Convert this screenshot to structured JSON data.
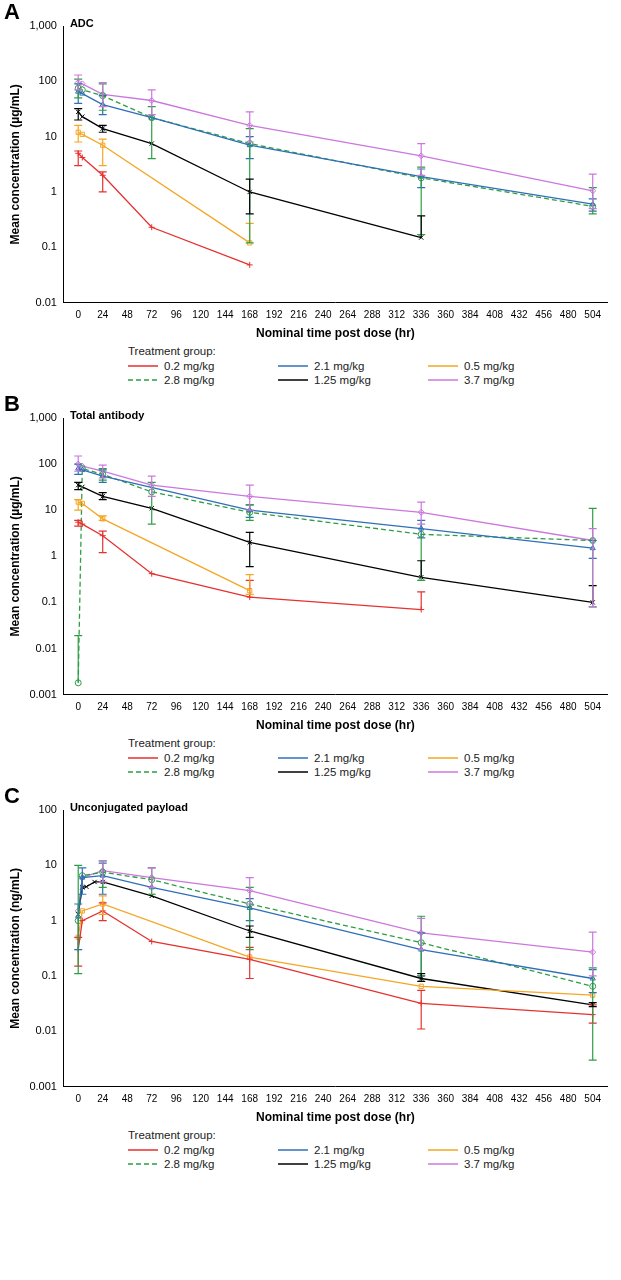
{
  "chart_data": [
    {
      "panel": "A",
      "type": "line",
      "title": "ADC",
      "x_label": "Nominal time post dose (hr)",
      "y_label": "Mean concentration (µg/mL)",
      "log": "y",
      "grid": false,
      "legend": "bottom",
      "legend_title": "Treatment group:",
      "xlim": [
        -14,
        518
      ],
      "xticks": [
        0,
        24,
        48,
        72,
        96,
        120,
        144,
        168,
        192,
        216,
        240,
        264,
        288,
        312,
        336,
        360,
        384,
        408,
        432,
        456,
        480,
        504
      ],
      "ylim": [
        0.01,
        1000
      ],
      "yticks": [
        0.01,
        0.1,
        1,
        10,
        100,
        {
          "value": 1000,
          "label": "1,000"
        }
      ],
      "series": [
        {
          "name": "0.2 mg/kg",
          "color": "#e5312f",
          "marker": "plus",
          "line_style": "solid",
          "x": [
            0,
            4,
            24,
            72,
            168
          ],
          "values": [
            5,
            4.2,
            2,
            0.23,
            0.048
          ],
          "error_low": [
            3,
            null,
            1,
            null,
            null
          ],
          "error_high": [
            5.5,
            null,
            2.3,
            null,
            null
          ]
        },
        {
          "name": "2.1 mg/kg",
          "color": "#2f6fb7",
          "marker": "triangle",
          "line_style": "solid",
          "x": [
            0,
            4,
            24,
            72,
            168,
            336,
            504
          ],
          "values": [
            65,
            60,
            38,
            22,
            7,
            1.9,
            0.6
          ],
          "error_low": [
            40,
            null,
            25,
            null,
            4,
            1.2,
            0.45
          ],
          "error_high": [
            90,
            null,
            55,
            null,
            10,
            2.6,
            0.75
          ]
        },
        {
          "name": "0.5 mg/kg",
          "color": "#f5a623",
          "marker": "square",
          "line_style": "solid",
          "x": [
            0,
            4,
            24,
            168
          ],
          "values": [
            12,
            11,
            7,
            0.12
          ],
          "error_low": [
            8,
            null,
            3,
            null
          ],
          "error_high": [
            16,
            null,
            9,
            0.27
          ]
        },
        {
          "name": "2.8 mg/kg",
          "color": "#2e9e44",
          "marker": "circle",
          "line_style": "dashed",
          "x": [
            0,
            4,
            24,
            72,
            168,
            336,
            504
          ],
          "values": [
            75,
            70,
            55,
            22,
            7.5,
            1.8,
            0.55
          ],
          "error_low": [
            50,
            null,
            30,
            4,
            0.12,
            0.17,
            0.4
          ],
          "error_high": [
            110,
            null,
            90,
            35,
            14,
            2.8,
            1.2
          ]
        },
        {
          "name": "1.25 mg/kg",
          "color": "#000000",
          "marker": "x",
          "line_style": "solid",
          "x": [
            0,
            4,
            24,
            72,
            168,
            336
          ],
          "values": [
            28,
            23,
            14,
            7.5,
            1,
            0.15
          ],
          "error_low": [
            20,
            null,
            12,
            null,
            0.4,
            null
          ],
          "error_high": [
            32,
            null,
            16,
            null,
            1.7,
            0.37
          ]
        },
        {
          "name": "3.7 mg/kg",
          "color": "#cc77dd",
          "marker": "diamond",
          "line_style": "solid",
          "x": [
            0,
            4,
            24,
            72,
            168,
            336,
            504
          ],
          "values": [
            95,
            90,
            58,
            45,
            16,
            4.5,
            1.05
          ],
          "error_low": [
            70,
            null,
            35,
            25,
            8,
            2,
            0.5
          ],
          "error_high": [
            130,
            null,
            95,
            70,
            28,
            7.5,
            2.1
          ]
        }
      ]
    },
    {
      "panel": "B",
      "type": "line",
      "title": "Total antibody",
      "x_label": "Nominal time post dose (hr)",
      "y_label": "Mean concentration (µg/mL)",
      "log": "y",
      "grid": false,
      "legend": "bottom",
      "legend_title": "Treatment group:",
      "xlim": [
        -14,
        518
      ],
      "xticks": [
        0,
        24,
        48,
        72,
        96,
        120,
        144,
        168,
        192,
        216,
        240,
        264,
        288,
        312,
        336,
        360,
        384,
        408,
        432,
        456,
        480,
        504
      ],
      "ylim": [
        0.001,
        1000
      ],
      "yticks": [
        0.001,
        0.01,
        0.1,
        1,
        10,
        100,
        {
          "value": 1000,
          "label": "1,000"
        }
      ],
      "series": [
        {
          "name": "0.2 mg/kg",
          "color": "#e5312f",
          "marker": "plus",
          "line_style": "solid",
          "x": [
            0,
            4,
            24,
            72,
            168,
            336
          ],
          "values": [
            5.5,
            5,
            2.8,
            0.42,
            0.13,
            0.07
          ],
          "error_low": [
            4.5,
            null,
            1.2,
            null,
            null,
            null
          ],
          "error_high": [
            6,
            null,
            3.5,
            null,
            0.3,
            0.17
          ]
        },
        {
          "name": "2.1 mg/kg",
          "color": "#2f6fb7",
          "marker": "triangle",
          "line_style": "solid",
          "x": [
            0,
            4,
            24,
            168,
            336,
            504
          ],
          "values": [
            80,
            75,
            55,
            10,
            4,
            1.5
          ],
          "error_low": [
            60,
            null,
            40,
            7,
            2.5,
            0.9
          ],
          "error_high": [
            100,
            null,
            75,
            13,
            6,
            2.2
          ]
        },
        {
          "name": "0.5 mg/kg",
          "color": "#f5a623",
          "marker": "square",
          "line_style": "solid",
          "x": [
            0,
            4,
            24,
            168
          ],
          "values": [
            15,
            14,
            6.5,
            0.18
          ],
          "error_low": [
            10,
            null,
            6,
            0.15
          ],
          "error_high": [
            17,
            null,
            7.5,
            0.4
          ]
        },
        {
          "name": "2.8 mg/kg",
          "color": "#2e9e44",
          "marker": "circle",
          "line_style": "dashed",
          "x": [
            0,
            4,
            24,
            72,
            168,
            336,
            504
          ],
          "values": [
            0.0018,
            80,
            60,
            25,
            9,
            3,
            2.2
          ],
          "error_low": [
            null,
            null,
            45,
            5,
            6,
            0.3,
            0.08
          ],
          "error_high": [
            0.019,
            null,
            80,
            40,
            13,
            null,
            11
          ]
        },
        {
          "name": "1.25 mg/kg",
          "color": "#000000",
          "marker": "x",
          "line_style": "solid",
          "x": [
            0,
            4,
            24,
            72,
            168,
            336,
            504
          ],
          "values": [
            35,
            32,
            20,
            11,
            2,
            0.35,
            0.1
          ],
          "error_low": [
            28,
            null,
            17,
            null,
            0.6,
            null,
            null
          ],
          "error_high": [
            40,
            null,
            24,
            null,
            3.3,
            0.8,
            0.23
          ]
        },
        {
          "name": "3.7 mg/kg",
          "color": "#cc77dd",
          "marker": "diamond",
          "line_style": "solid",
          "x": [
            0,
            4,
            24,
            72,
            168,
            336,
            504
          ],
          "values": [
            100,
            90,
            70,
            35,
            20,
            9,
            2.2
          ],
          "error_low": [
            70,
            null,
            50,
            20,
            10,
            5,
            0.08
          ],
          "error_high": [
            150,
            null,
            95,
            55,
            35,
            15,
            4
          ]
        }
      ]
    },
    {
      "panel": "C",
      "type": "line",
      "title": "Unconjugated payload",
      "x_label": "Nominal time post dose (hr)",
      "y_label": "Mean concentration (ng/mL)",
      "log": "y",
      "grid": false,
      "legend": "bottom",
      "legend_title": "Treatment group:",
      "xlim": [
        -14,
        518
      ],
      "xticks": [
        0,
        24,
        48,
        72,
        96,
        120,
        144,
        168,
        192,
        216,
        240,
        264,
        288,
        312,
        336,
        360,
        384,
        408,
        432,
        456,
        480,
        504
      ],
      "ylim": [
        0.001,
        100
      ],
      "yticks": [
        0.001,
        0.01,
        0.1,
        1,
        10,
        100
      ],
      "series": [
        {
          "name": "0.2 mg/kg",
          "color": "#e5312f",
          "marker": "plus",
          "line_style": "solid",
          "x": [
            0,
            4,
            24,
            72,
            168,
            336,
            504
          ],
          "values": [
            0.3,
            1,
            1.5,
            0.42,
            0.2,
            0.032,
            0.02
          ],
          "error_low": [
            0.15,
            null,
            1,
            null,
            0.09,
            0.011,
            0.014
          ],
          "error_high": [
            0.5,
            null,
            2.1,
            null,
            0.33,
            0.055,
            0.03
          ]
        },
        {
          "name": "2.1 mg/kg",
          "color": "#2f6fb7",
          "marker": "triangle",
          "line_style": "solid",
          "x": [
            0,
            4,
            24,
            72,
            168,
            336,
            504
          ],
          "values": [
            1.2,
            6,
            6.5,
            4,
            1.7,
            0.3,
            0.09
          ],
          "error_low": [
            0.3,
            3,
            3,
            null,
            1,
            0.1,
            0.05
          ],
          "error_high": [
            2,
            9,
            11,
            null,
            2.5,
            0.6,
            0.13
          ]
        },
        {
          "name": "0.5 mg/kg",
          "color": "#f5a623",
          "marker": "square",
          "line_style": "solid",
          "x": [
            0,
            4,
            24,
            168,
            336,
            504
          ],
          "values": [
            0.5,
            1.5,
            2,
            0.22,
            0.065,
            0.045
          ],
          "error_low": [
            null,
            null,
            1.3,
            null,
            null,
            null
          ],
          "error_high": [
            null,
            null,
            2.8,
            null,
            null,
            null
          ]
        },
        {
          "name": "2.8 mg/kg",
          "color": "#2e9e44",
          "marker": "circle",
          "line_style": "dashed",
          "x": [
            0,
            4,
            24,
            72,
            168,
            336,
            504
          ],
          "values": [
            1,
            6.5,
            7.5,
            5.5,
            2,
            0.4,
            0.065
          ],
          "error_low": [
            0.11,
            null,
            4,
            3,
            0.3,
            0.1,
            0.003
          ],
          "error_high": [
            10,
            null,
            12,
            9,
            4,
            1.2,
            0.14
          ]
        },
        {
          "name": "1.25 mg/kg",
          "color": "#000000",
          "marker": "x",
          "line_style": "solid",
          "x": [
            0,
            4,
            8,
            16,
            24,
            72,
            168,
            336,
            504
          ],
          "values": [
            1.3,
            4,
            4.1,
            5,
            5,
            2.8,
            0.65,
            0.09,
            0.03
          ],
          "error_low": [
            null,
            null,
            null,
            null,
            null,
            null,
            0.5,
            0.08,
            0.028
          ],
          "error_high": [
            null,
            null,
            null,
            null,
            null,
            null,
            0.8,
            0.11,
            0.033
          ]
        },
        {
          "name": "3.7 mg/kg",
          "color": "#cc77dd",
          "marker": "diamond",
          "line_style": "solid",
          "x": [
            0,
            4,
            24,
            72,
            168,
            336,
            504
          ],
          "values": [
            1.5,
            6,
            8,
            6,
            3.5,
            0.6,
            0.27
          ],
          "error_low": [
            null,
            null,
            5,
            4,
            2,
            0.3,
            0.1
          ],
          "error_high": [
            null,
            null,
            12,
            9,
            6,
            1.1,
            0.62
          ]
        }
      ]
    }
  ]
}
